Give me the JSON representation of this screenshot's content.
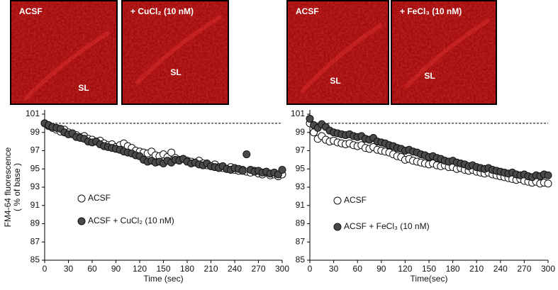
{
  "images": [
    {
      "label": "ACSF",
      "region": "SL"
    },
    {
      "label": "+ CuCl₂ (10 nM)",
      "region": "SL"
    },
    {
      "label": "ACSF",
      "region": "SL"
    },
    {
      "label": "+ FeCl₃ (10 nM)",
      "region": "SL"
    }
  ],
  "chart_data": [
    {
      "type": "scatter",
      "xlabel": "Time (sec)",
      "ylabel_lines": [
        "FM4-64 fluorescence",
        "( % of base )"
      ],
      "xlim": [
        0,
        300
      ],
      "xticks": [
        0,
        30,
        60,
        90,
        120,
        150,
        180,
        210,
        240,
        270,
        300
      ],
      "ylim": [
        85,
        101
      ],
      "yticks": [
        85,
        87,
        89,
        91,
        93,
        95,
        97,
        99,
        101
      ],
      "reference_line": 100,
      "x": [
        0,
        5,
        10,
        15,
        20,
        25,
        30,
        35,
        40,
        45,
        50,
        55,
        60,
        65,
        70,
        75,
        80,
        85,
        90,
        95,
        100,
        105,
        110,
        115,
        120,
        125,
        130,
        135,
        140,
        145,
        150,
        155,
        160,
        165,
        170,
        175,
        180,
        185,
        190,
        195,
        200,
        205,
        210,
        215,
        220,
        225,
        230,
        235,
        240,
        245,
        250,
        255,
        260,
        265,
        270,
        275,
        280,
        285,
        290,
        295,
        300
      ],
      "series": [
        {
          "name": "ACSF",
          "color": "#ffffff",
          "values": [
            100,
            99.7,
            99.5,
            99.3,
            99.1,
            99.3,
            99.0,
            98.8,
            98.7,
            98.5,
            98.6,
            98.3,
            98.2,
            98.0,
            98.1,
            97.8,
            97.6,
            97.7,
            97.4,
            97.6,
            97.8,
            97.5,
            97.3,
            97.0,
            96.9,
            96.8,
            96.7,
            96.9,
            96.5,
            96.4,
            96.6,
            96.3,
            96.8,
            96.2,
            96.0,
            96.1,
            95.9,
            95.8,
            95.7,
            95.9,
            95.6,
            95.4,
            95.3,
            95.5,
            95.2,
            95.1,
            95.0,
            95.2,
            94.9,
            94.8,
            94.9,
            94.7,
            94.6,
            94.8,
            94.5,
            94.4,
            94.6,
            94.3,
            94.4,
            94.2,
            94.4
          ]
        },
        {
          "name": "ACSF + CuCl₂ (10 nM)",
          "color": "#4a4a4a",
          "values": [
            100.0,
            99.8,
            99.6,
            99.5,
            99.4,
            99.0,
            98.8,
            98.9,
            98.5,
            98.4,
            98.3,
            98.0,
            97.9,
            98.0,
            97.7,
            97.5,
            97.4,
            97.3,
            97.2,
            97.1,
            96.9,
            96.8,
            96.7,
            96.5,
            96.4,
            96.0,
            95.8,
            95.9,
            95.7,
            95.8,
            95.6,
            95.9,
            95.7,
            96.0,
            95.9,
            96.1,
            95.8,
            95.6,
            95.7,
            95.5,
            95.4,
            95.6,
            95.3,
            95.2,
            95.1,
            95.3,
            95.0,
            94.9,
            95.1,
            95.0,
            94.8,
            96.6,
            94.9,
            94.7,
            94.8,
            94.6,
            94.7,
            94.5,
            94.6,
            94.4,
            94.9
          ]
        }
      ]
    },
    {
      "type": "scatter",
      "xlabel": "Time(sec)",
      "xlim": [
        0,
        300
      ],
      "xticks": [
        0,
        30,
        60,
        90,
        120,
        150,
        180,
        210,
        240,
        270,
        300
      ],
      "ylim": [
        85,
        101
      ],
      "yticks": [
        85,
        87,
        89,
        91,
        93,
        95,
        97,
        99,
        101
      ],
      "reference_line": 100,
      "x": [
        0,
        5,
        10,
        15,
        20,
        25,
        30,
        35,
        40,
        45,
        50,
        55,
        60,
        65,
        70,
        75,
        80,
        85,
        90,
        95,
        100,
        105,
        110,
        115,
        120,
        125,
        130,
        135,
        140,
        145,
        150,
        155,
        160,
        165,
        170,
        175,
        180,
        185,
        190,
        195,
        200,
        205,
        210,
        215,
        220,
        225,
        230,
        235,
        240,
        245,
        250,
        255,
        260,
        265,
        270,
        275,
        280,
        285,
        290,
        295,
        300
      ],
      "series": [
        {
          "name": "ACSF",
          "color": "#ffffff",
          "values": [
            100.0,
            99.0,
            98.3,
            98.6,
            98.2,
            98.0,
            98.1,
            97.9,
            97.8,
            97.7,
            97.8,
            97.6,
            97.5,
            97.6,
            97.3,
            97.2,
            97.4,
            97.1,
            97.0,
            96.9,
            96.8,
            96.6,
            96.4,
            96.3,
            96.0,
            96.1,
            95.9,
            95.8,
            95.7,
            95.6,
            95.5,
            95.6,
            95.4,
            95.3,
            95.4,
            95.2,
            95.2,
            95.0,
            95.1,
            94.9,
            94.8,
            94.9,
            94.7,
            94.6,
            94.5,
            94.6,
            94.4,
            94.3,
            94.2,
            94.1,
            94.0,
            93.9,
            93.8,
            93.9,
            93.7,
            93.6,
            93.5,
            93.6,
            93.4,
            93.5,
            93.4
          ]
        },
        {
          "name": "ACSF + FeCl₃ (10 nM)",
          "color": "#4a4a4a",
          "values": [
            100.5,
            99.8,
            99.5,
            99.9,
            99.6,
            99.2,
            99.0,
            98.9,
            98.8,
            98.7,
            98.8,
            98.6,
            98.5,
            98.6,
            98.3,
            98.2,
            98.4,
            98.0,
            97.9,
            97.8,
            97.6,
            97.5,
            97.3,
            97.2,
            97.0,
            97.1,
            96.9,
            96.8,
            96.6,
            96.5,
            96.3,
            96.4,
            96.2,
            96.1,
            95.9,
            95.8,
            95.9,
            95.7,
            95.6,
            95.5,
            95.3,
            95.4,
            95.2,
            95.1,
            95.0,
            95.1,
            94.9,
            94.8,
            94.7,
            94.6,
            94.5,
            94.6,
            94.4,
            94.3,
            94.4,
            94.2,
            94.1,
            94.3,
            94.2,
            94.4,
            94.3
          ]
        }
      ]
    }
  ]
}
